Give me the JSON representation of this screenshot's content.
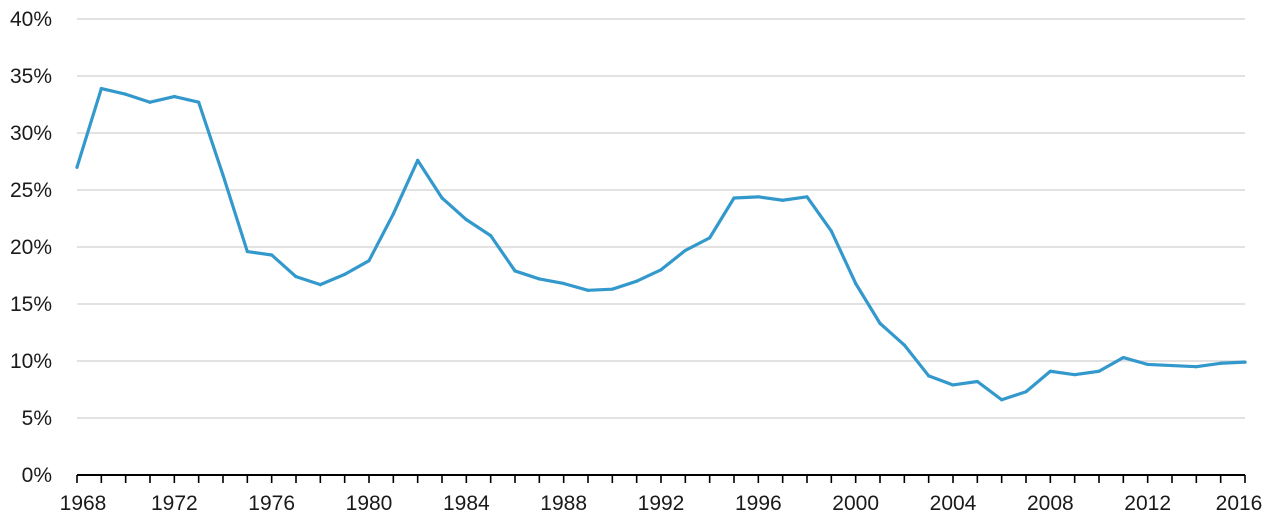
{
  "chart_data": {
    "type": "line",
    "title": "",
    "xlabel": "",
    "ylabel": "",
    "x": [
      1968,
      1969,
      1970,
      1971,
      1972,
      1973,
      1974,
      1975,
      1976,
      1977,
      1978,
      1979,
      1980,
      1981,
      1982,
      1983,
      1984,
      1985,
      1986,
      1987,
      1988,
      1989,
      1990,
      1991,
      1992,
      1993,
      1994,
      1995,
      1996,
      1997,
      1998,
      1999,
      2000,
      2001,
      2002,
      2003,
      2004,
      2005,
      2006,
      2007,
      2008,
      2009,
      2010,
      2011,
      2012,
      2013,
      2014,
      2015,
      2016
    ],
    "series": [
      {
        "values": [
          27.0,
          33.9,
          33.4,
          32.7,
          33.2,
          32.7,
          26.3,
          19.6,
          19.3,
          17.4,
          16.7,
          17.6,
          18.8,
          22.9,
          27.6,
          24.3,
          22.4,
          21.0,
          17.9,
          17.2,
          16.8,
          16.2,
          16.3,
          17.0,
          18.0,
          19.7,
          20.8,
          24.3,
          24.4,
          24.1,
          24.4,
          21.4,
          16.8,
          13.3,
          11.4,
          8.7,
          7.9,
          8.2,
          6.6,
          7.3,
          9.1,
          8.8,
          9.1,
          10.3,
          9.7,
          9.6,
          9.5,
          9.8,
          9.9
        ],
        "color": "#3399cc"
      }
    ],
    "xlim": [
      1968,
      2016
    ],
    "ylim": [
      0,
      40
    ],
    "x_tick_labels": [
      "1968",
      "1972",
      "1976",
      "1980",
      "1984",
      "1988",
      "1992",
      "1996",
      "2000",
      "2004",
      "2008",
      "2012",
      "2016"
    ],
    "x_tick_values": [
      1968,
      1972,
      1976,
      1980,
      1984,
      1988,
      1992,
      1996,
      2000,
      2004,
      2008,
      2012,
      2016
    ],
    "y_tick_labels": [
      "0%",
      "5%",
      "10%",
      "15%",
      "20%",
      "25%",
      "30%",
      "35%",
      "40%"
    ],
    "y_tick_values": [
      0,
      5,
      10,
      15,
      20,
      25,
      30,
      35,
      40
    ],
    "grid": "horizontal",
    "legend": "none",
    "colors": {
      "line": "#3399cc",
      "grid": "#d9d9d9",
      "axis": "#000000",
      "text": "#1a1a1a"
    }
  }
}
